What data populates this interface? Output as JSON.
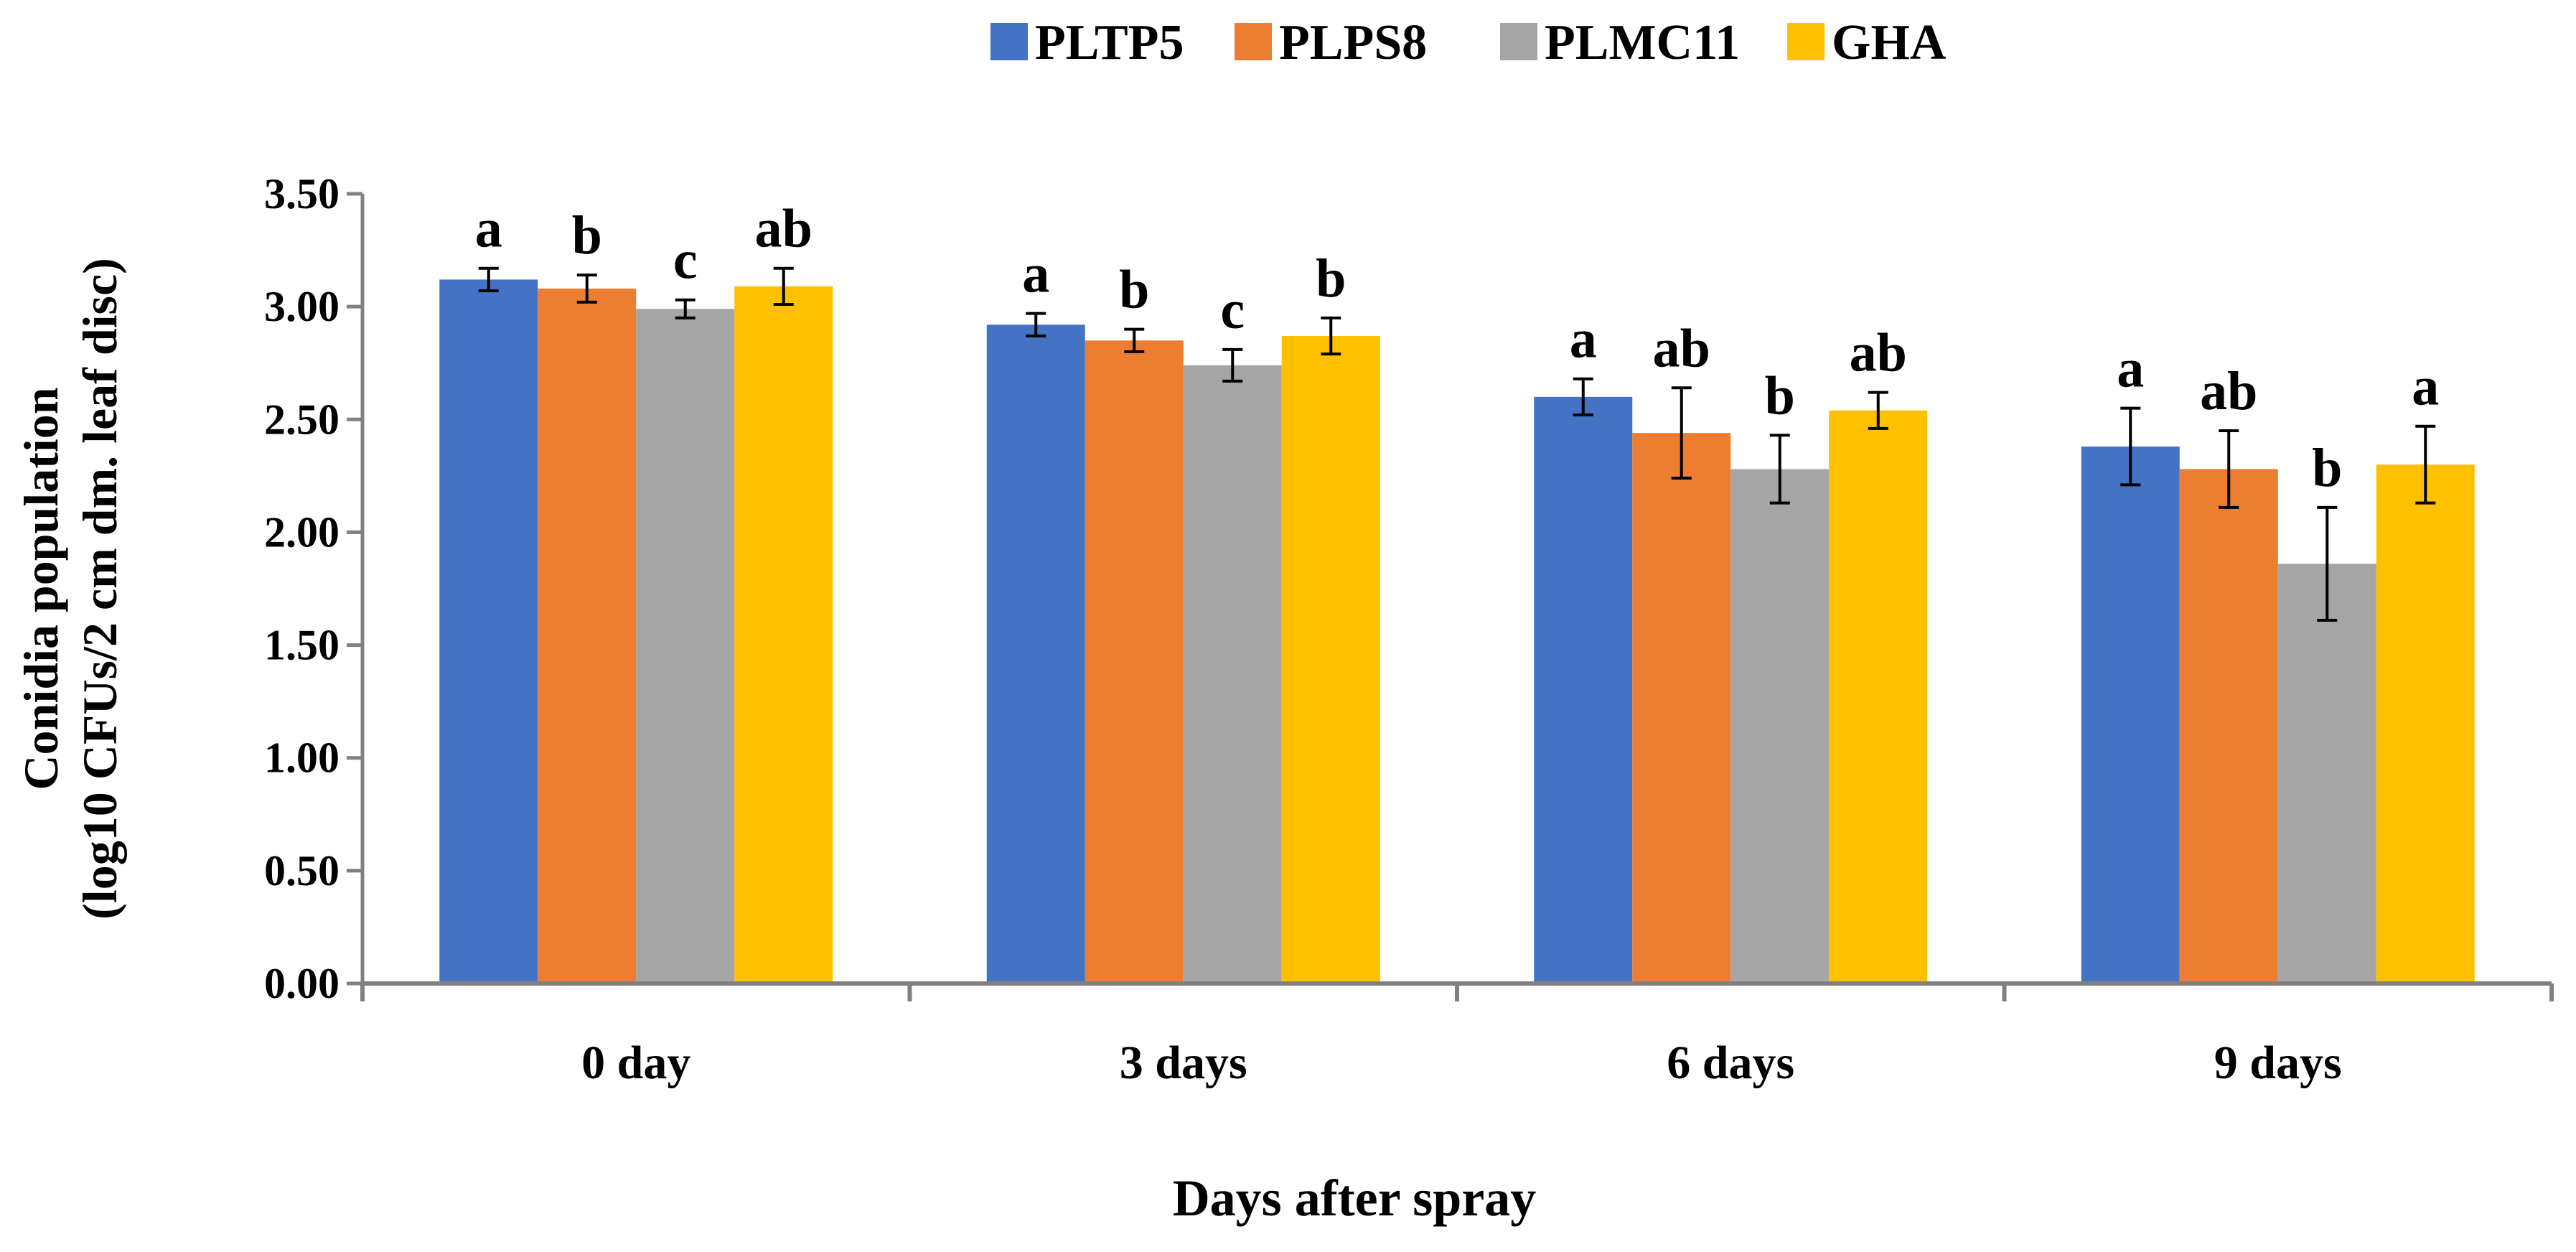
{
  "chart_data": {
    "type": "bar",
    "title": "",
    "xlabel": "Days after spray",
    "ylabel_lines": [
      "Conidia population",
      "(log10 CFUs/2 cm dm. leaf disc)"
    ],
    "categories": [
      "0 day",
      "3 days",
      "6 days",
      "9 days"
    ],
    "ylim": [
      0,
      3.5
    ],
    "yticks": [
      "0.00",
      "0.50",
      "1.00",
      "1.50",
      "2.00",
      "2.50",
      "3.00",
      "3.50"
    ],
    "legend_position": "top-center",
    "series": [
      {
        "name": "PLTP5",
        "color": "#4472C4",
        "values": [
          3.12,
          2.92,
          2.6,
          2.38
        ],
        "errors": [
          0.05,
          0.05,
          0.08,
          0.17
        ],
        "letters": [
          "a",
          "a",
          "a",
          "a"
        ]
      },
      {
        "name": "PLPS8",
        "color": "#ED7D31",
        "values": [
          3.08,
          2.85,
          2.44,
          2.28
        ],
        "errors": [
          0.06,
          0.05,
          0.2,
          0.17
        ],
        "letters": [
          "b",
          "b",
          "ab",
          "ab"
        ]
      },
      {
        "name": "PLMC11",
        "color": "#A5A5A5",
        "values": [
          2.99,
          2.74,
          2.28,
          1.86
        ],
        "errors": [
          0.04,
          0.07,
          0.15,
          0.25
        ],
        "letters": [
          "c",
          "c",
          "b",
          "b"
        ]
      },
      {
        "name": "GHA",
        "color": "#FFC000",
        "values": [
          3.09,
          2.87,
          2.54,
          2.3
        ],
        "errors": [
          0.08,
          0.08,
          0.08,
          0.17
        ],
        "letters": [
          "ab",
          "b",
          "ab",
          "a"
        ]
      }
    ]
  }
}
